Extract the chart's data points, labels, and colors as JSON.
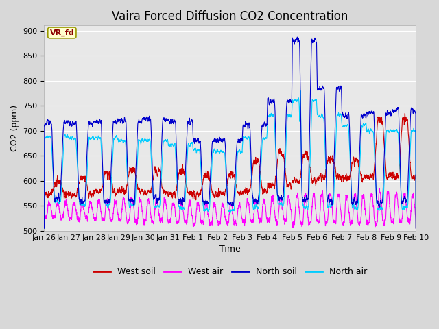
{
  "title": "Vaira Forced Diffusion CO2 Concentration",
  "xlabel": "Time",
  "ylabel": "CO2 (ppm)",
  "ylim": [
    500,
    910
  ],
  "yticks": [
    500,
    550,
    600,
    650,
    700,
    750,
    800,
    850,
    900
  ],
  "xtick_labels": [
    "Jan 26",
    "Jan 27",
    "Jan 28",
    "Jan 29",
    "Jan 30",
    "Jan 31",
    "Feb 1",
    "Feb 2",
    "Feb 3",
    "Feb 4",
    "Feb 5",
    "Feb 6",
    "Feb 7",
    "Feb 8",
    "Feb 9",
    "Feb 10"
  ],
  "colors": {
    "west_soil": "#cc0000",
    "west_air": "#ff00ff",
    "north_soil": "#0000cc",
    "north_air": "#00ccff"
  },
  "legend_label": "VR_fd",
  "legend_box_color": "#ffffcc",
  "legend_text_color": "#8b0000",
  "legend_box_edge": "#999900",
  "background_color": "#e8e8e8",
  "grid_color": "#ffffff",
  "line_width": 0.8,
  "title_fontsize": 12,
  "label_fontsize": 9,
  "tick_fontsize": 8,
  "n_points": 4320,
  "days": 15
}
